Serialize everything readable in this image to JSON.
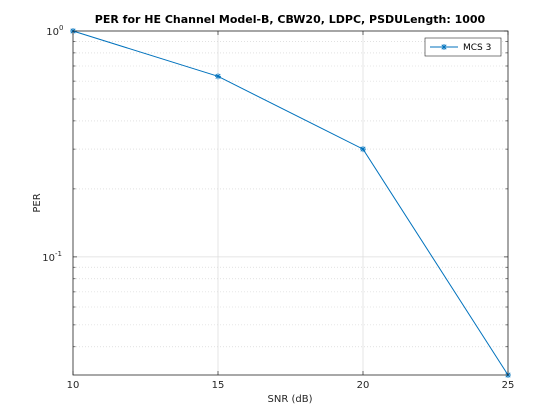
{
  "chart_data": {
    "type": "line",
    "title": "PER for HE Channel Model-B, CBW20, LDPC, PSDULength: 1000",
    "xlabel": "SNR (dB)",
    "ylabel": "PER",
    "x": [
      10,
      15,
      20,
      25
    ],
    "xlim": [
      10,
      25
    ],
    "xticks": [
      "10",
      "15",
      "20",
      "25"
    ],
    "ylim": [
      0.03,
      1
    ],
    "yscale": "log",
    "yticks": [
      {
        "base": "10",
        "exp": "0",
        "value": 1
      },
      {
        "base": "10",
        "exp": "-1",
        "value": 0.1
      }
    ],
    "grid": true,
    "legend_position": "top-right",
    "series": [
      {
        "name": "MCS 3",
        "color": "#0072bd",
        "marker": "asterisk",
        "values": [
          1.0,
          0.63,
          0.3,
          0.03
        ]
      }
    ]
  }
}
